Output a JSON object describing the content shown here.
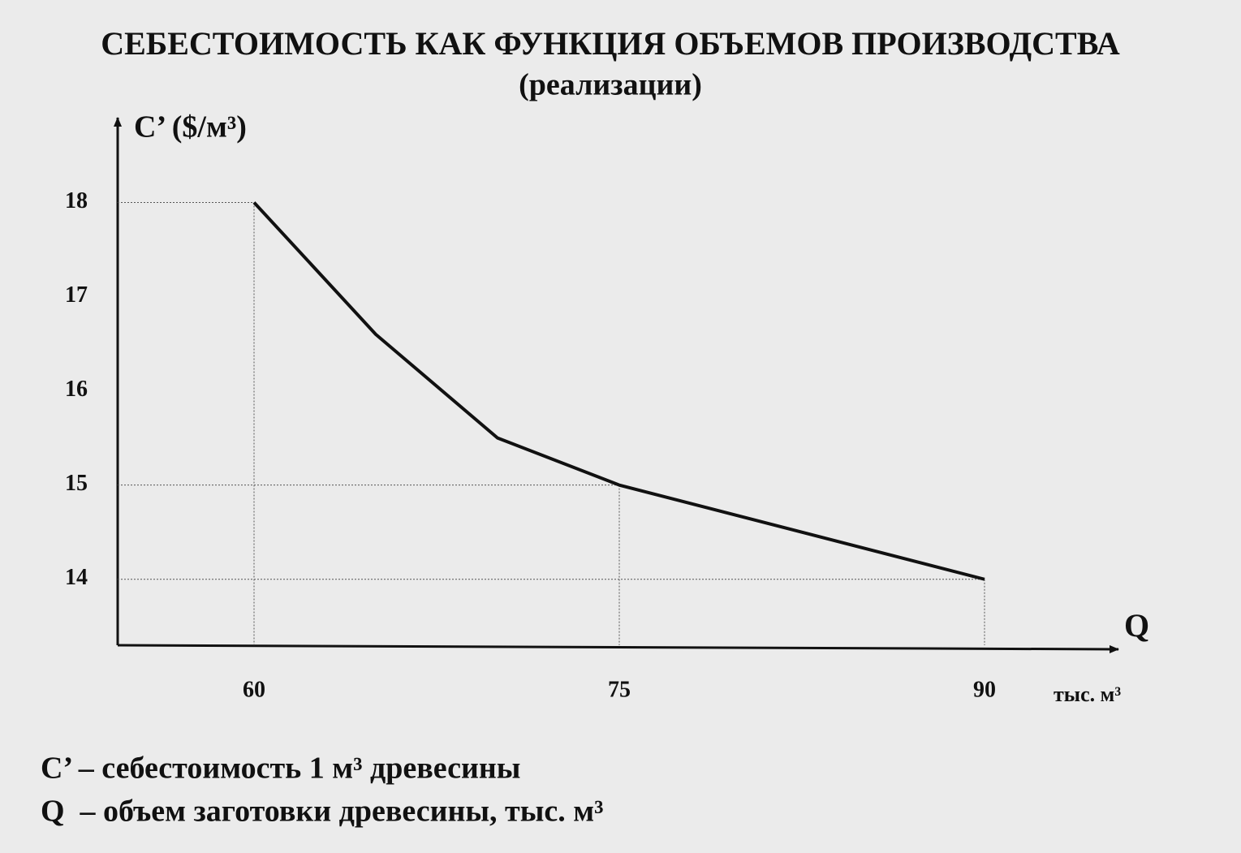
{
  "chart_data": {
    "type": "line",
    "title": "СЕБЕСТОИМОСТЬ КАК ФУНКЦИЯ ОБЪЕМОВ ПРОИЗВОДСТВА",
    "subtitle": "(реализации)",
    "y_label": "C’ ($/м³)",
    "x_label": "Q",
    "x_unit": "тыс. м³",
    "x": [
      60,
      65,
      70,
      75,
      90
    ],
    "series": [
      {
        "values": [
          18,
          16.6,
          15.5,
          15,
          14
        ],
        "color": "#111111"
      }
    ],
    "xlim": [
      54.4,
      95.4
    ],
    "ylim": [
      13.3,
      18.9
    ],
    "xticks": [
      60,
      75,
      90
    ],
    "yticks": [
      14,
      15,
      16,
      17,
      18
    ],
    "notes": [
      "C’ – себестоимость 1 м³ древесины",
      "Q  – объем заготовки древесины, тыс. м³"
    ]
  }
}
